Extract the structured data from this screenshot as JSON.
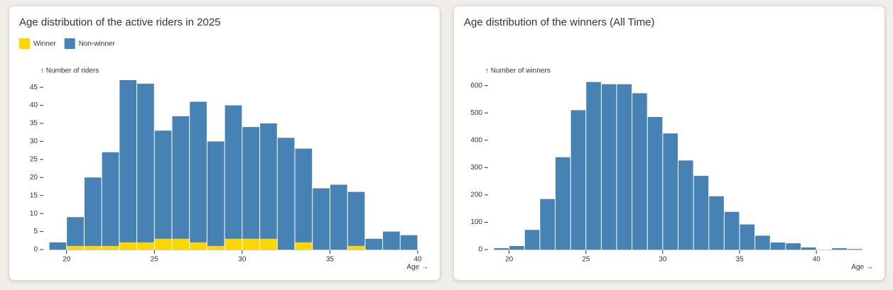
{
  "chart_data": [
    {
      "type": "histogram",
      "title": "Age distribution of the active riders in 2025",
      "ylabel": "↑ Number of riders",
      "xlabel": "Age →",
      "bins": [
        19,
        20,
        21,
        22,
        23,
        24,
        25,
        26,
        27,
        28,
        29,
        30,
        31,
        32,
        33,
        34,
        35,
        36,
        37,
        38,
        39,
        40
      ],
      "series": [
        {
          "name": "Winner",
          "color": "#ffd700",
          "values": [
            0,
            1,
            1,
            1,
            2,
            2,
            3,
            3,
            2,
            1,
            3,
            3,
            3,
            0,
            2,
            0,
            0,
            1,
            0,
            0,
            0
          ]
        },
        {
          "name": "Non-winner",
          "color": "#4682b4",
          "values": [
            2,
            8,
            19,
            26,
            45,
            44,
            30,
            34,
            39,
            29,
            37,
            31,
            32,
            31,
            26,
            17,
            18,
            15,
            3,
            5,
            4
          ]
        }
      ],
      "xlim": [
        19,
        40
      ],
      "xticks": [
        20,
        25,
        30,
        35,
        40
      ],
      "ylim": [
        0,
        47
      ],
      "yticks": [
        0,
        5,
        10,
        15,
        20,
        25,
        30,
        35,
        40,
        45
      ]
    },
    {
      "type": "histogram",
      "title": "Age distribution of the winners (All Time)",
      "ylabel": "↑ Number of winners",
      "xlabel": "Age →",
      "bins": [
        19,
        20,
        21,
        22,
        23,
        24,
        25,
        26,
        27,
        28,
        29,
        30,
        31,
        32,
        33,
        34,
        35,
        36,
        37,
        38,
        39,
        40,
        41,
        42,
        43
      ],
      "series": [
        {
          "color": "#4682b4",
          "values": [
            5,
            13,
            72,
            185,
            338,
            510,
            613,
            605,
            605,
            572,
            485,
            425,
            326,
            270,
            195,
            138,
            92,
            51,
            26,
            23,
            8,
            0,
            5,
            2
          ]
        }
      ],
      "xlim": [
        19,
        43
      ],
      "xticks": [
        20,
        25,
        30,
        35,
        40
      ],
      "ylim": [
        0,
        620
      ],
      "yticks": [
        0,
        100,
        200,
        300,
        400,
        500,
        600
      ]
    }
  ]
}
